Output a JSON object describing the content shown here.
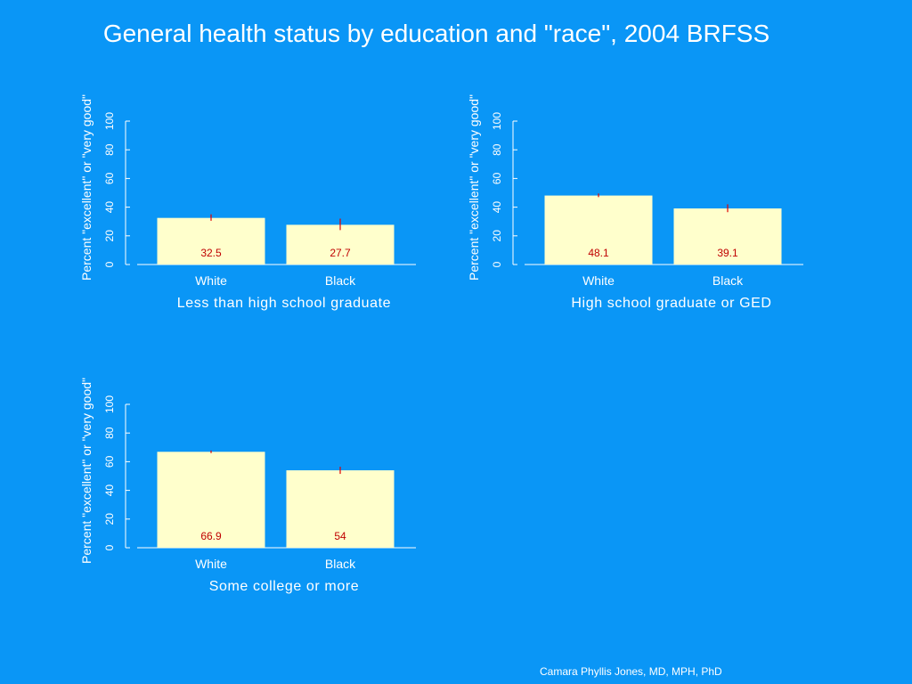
{
  "title": "General health status by education and \"race\", 2004 BRFSS",
  "credit": "Camara Phyllis Jones, MD, MPH, PhD",
  "colors": {
    "background": "#0a96f6",
    "bar": "#ffffcc",
    "error_bar": "#e00000",
    "value_label": "#c00000",
    "text": "#ffffff"
  },
  "chart_data": [
    {
      "type": "bar",
      "title": "",
      "subtitle": "Less than high school graduate",
      "ylabel": "Percent \"excellent\" or \"very good\"",
      "xlabel": "",
      "categories": [
        "White",
        "Black"
      ],
      "values": [
        32.5,
        27.7
      ],
      "error_low": [
        30.5,
        24.0
      ],
      "error_high": [
        35.0,
        32.0
      ],
      "value_labels": [
        "32.5",
        "27.7"
      ],
      "ylim": [
        0,
        100
      ],
      "yticks": [
        "0",
        "20",
        "40",
        "60",
        "80",
        "100"
      ],
      "grid": false
    },
    {
      "type": "bar",
      "title": "",
      "subtitle": "High school graduate or GED",
      "ylabel": "Percent \"excellent\" or \"very good\"",
      "xlabel": "",
      "categories": [
        "White",
        "Black"
      ],
      "values": [
        48.1,
        39.1
      ],
      "error_low": [
        47.0,
        36.5
      ],
      "error_high": [
        49.5,
        42.0
      ],
      "value_labels": [
        "48.1",
        "39.1"
      ],
      "ylim": [
        0,
        100
      ],
      "yticks": [
        "0",
        "20",
        "40",
        "60",
        "80",
        "100"
      ],
      "grid": false
    },
    {
      "type": "bar",
      "title": "",
      "subtitle": "Some college or more",
      "ylabel": "Percent \"excellent\" or \"very good\"",
      "xlabel": "",
      "categories": [
        "White",
        "Black"
      ],
      "values": [
        66.9,
        54
      ],
      "error_low": [
        66.0,
        51.5
      ],
      "error_high": [
        67.8,
        56.5
      ],
      "value_labels": [
        "66.9",
        "54"
      ],
      "ylim": [
        0,
        100
      ],
      "yticks": [
        "0",
        "20",
        "40",
        "60",
        "80",
        "100"
      ],
      "grid": false
    }
  ]
}
